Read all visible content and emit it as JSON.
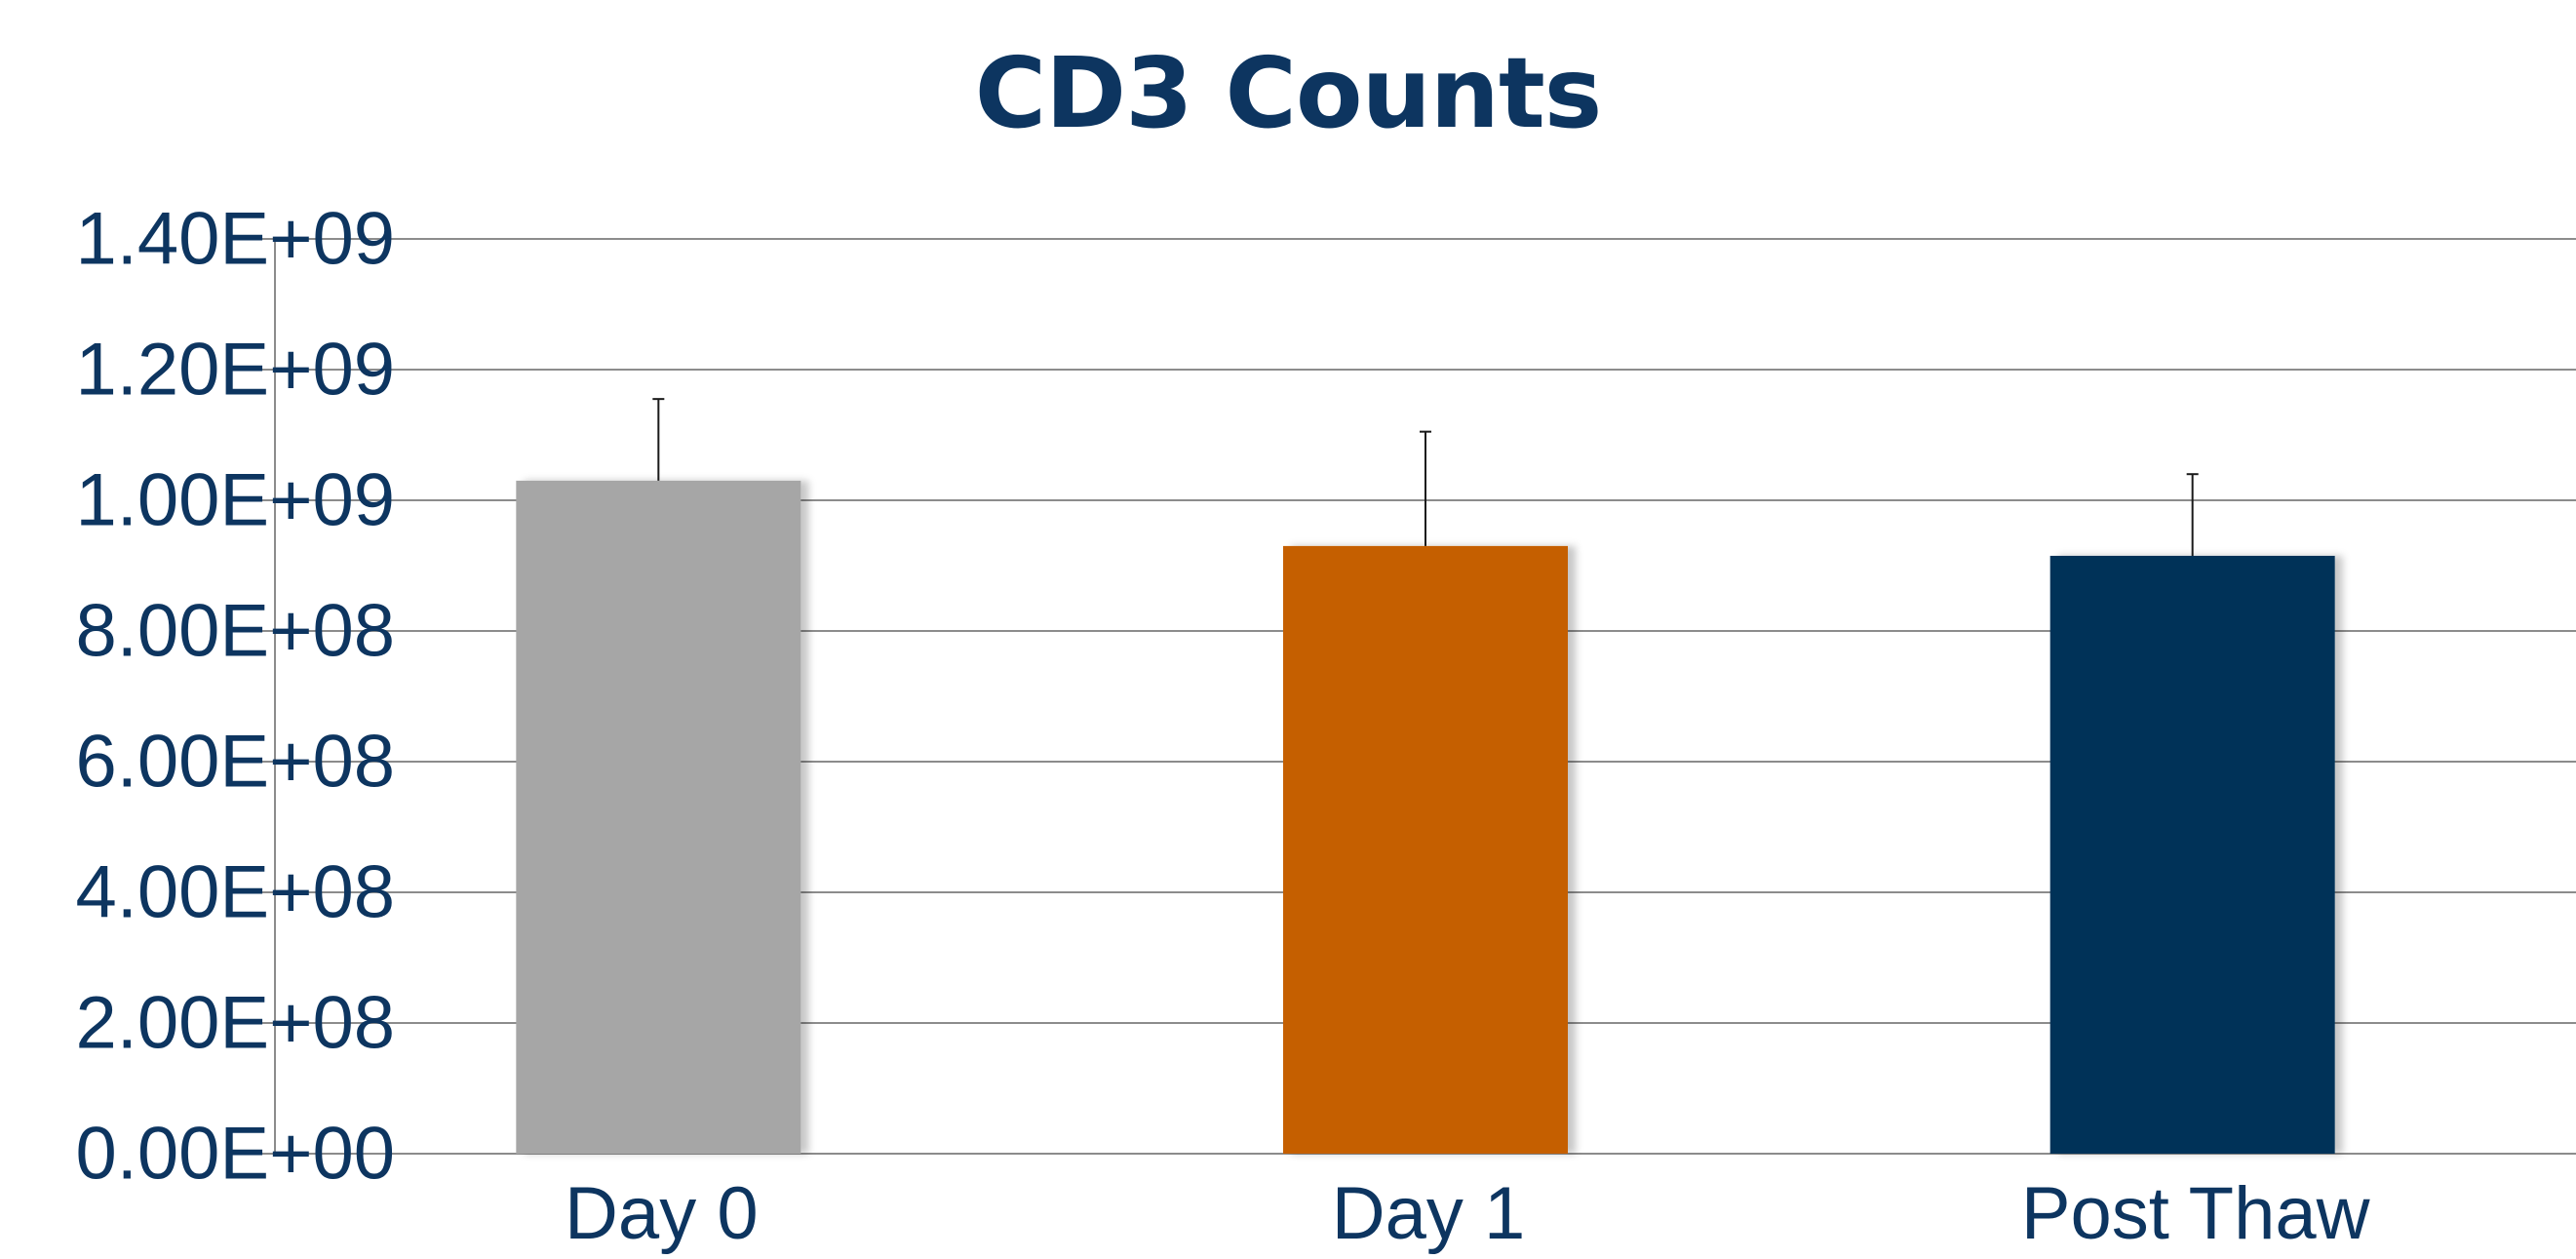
{
  "chart_data": {
    "type": "bar",
    "title": "CD3 Counts",
    "xlabel": "",
    "ylabel": "",
    "categories": [
      "Day 0",
      "Day 1",
      "Post Thaw"
    ],
    "values": [
      1030000000,
      930000000,
      915000000
    ],
    "error_plus": [
      125000000,
      175000000,
      125000000
    ],
    "colors": [
      "#a6a6a6",
      "#c55f06",
      "#003058"
    ],
    "ylim": [
      0,
      1400000000
    ],
    "yticks": [
      0,
      200000000,
      400000000,
      600000000,
      800000000,
      1000000000,
      1200000000,
      1400000000
    ],
    "ytick_labels": [
      "0.00E+00",
      "2.00E+08",
      "4.00E+08",
      "6.00E+08",
      "8.00E+08",
      "1.00E+09",
      "1.20E+09",
      "1.40E+09"
    ],
    "grid": true,
    "legend": "none"
  }
}
